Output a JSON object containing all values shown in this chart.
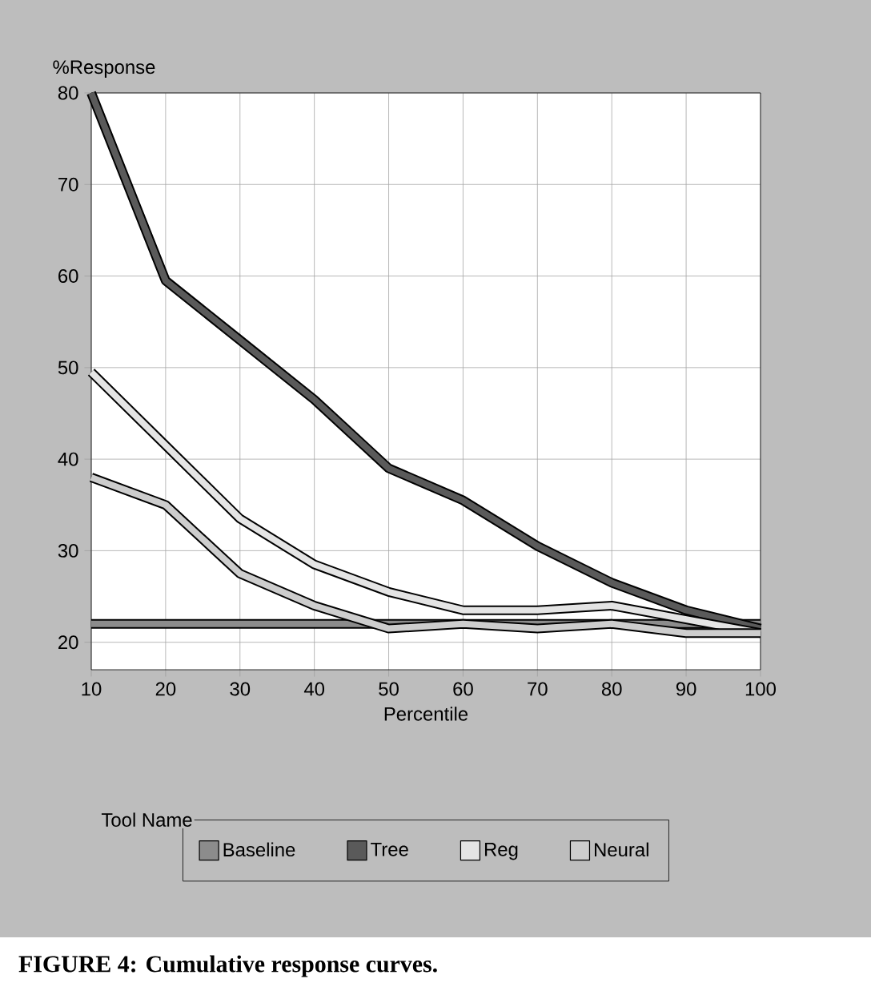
{
  "chart_data": {
    "type": "line",
    "xlabel": "Percentile",
    "ylabel": "%Response",
    "legend_title": "Tool Name",
    "x": [
      10,
      20,
      30,
      40,
      50,
      60,
      70,
      80,
      90,
      100
    ],
    "series": [
      {
        "name": "Baseline",
        "color": "#8c8c8c",
        "values": [
          22,
          22,
          22,
          22,
          22,
          22,
          22,
          22,
          22,
          22
        ]
      },
      {
        "name": "Tree",
        "color": "#5a5a5a",
        "values": [
          80,
          59.5,
          53,
          46.5,
          39,
          35.5,
          30.5,
          26.5,
          23.5,
          21.5
        ]
      },
      {
        "name": "Reg",
        "color": "#e4e4e4",
        "values": [
          49.5,
          41.5,
          33.5,
          28.5,
          25.5,
          23.5,
          23.5,
          24,
          22.5,
          21
        ]
      },
      {
        "name": "Neural",
        "color": "#cdcdcd",
        "values": [
          38,
          35,
          27.5,
          24,
          21.5,
          22,
          21.5,
          22,
          21,
          21
        ]
      }
    ],
    "xlim": [
      10,
      100
    ],
    "ylim": [
      17,
      80
    ],
    "xticks": [
      10,
      20,
      30,
      40,
      50,
      60,
      70,
      80,
      90,
      100
    ],
    "yticks": [
      20,
      30,
      40,
      50,
      60,
      70,
      80
    ],
    "grid": true,
    "legend": "bottom",
    "marker": "none",
    "line_style": "solid",
    "annotations": [
      "FIGURE 4: Cumulative response curves."
    ]
  }
}
